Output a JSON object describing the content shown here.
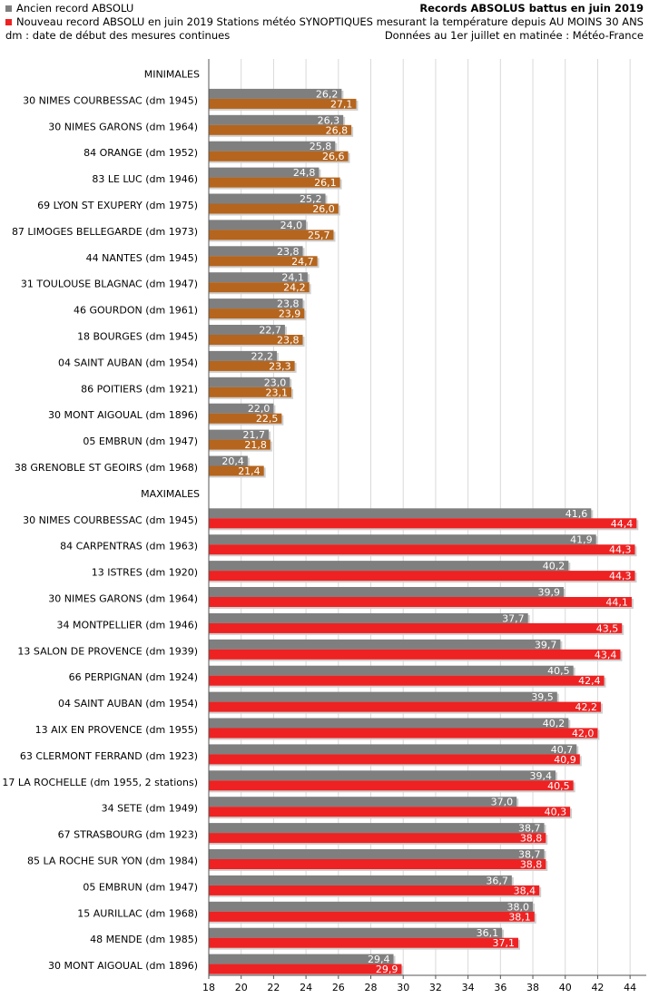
{
  "header": {
    "title": "Records ABSOLUS battus en juin 2019",
    "subtitle1": "Stations météo SYNOPTIQUES mesurant la température depuis AU MOINS 30 ANS",
    "subtitle2": "Données au 1er juillet en matinée : Météo-France"
  },
  "legend": {
    "old": "Ancien record ABSOLU",
    "new": "Nouveau record ABSOLU en juin 2019",
    "note": "dm : date de début des mesures continues"
  },
  "colors": {
    "old": "#7f7f7f",
    "new_min": "#b5651d",
    "new_max": "#ee2222",
    "grid": "#d9d9d9"
  },
  "chart_data": {
    "type": "bar",
    "orientation": "horizontal",
    "title": "Records ABSOLUS battus en juin 2019",
    "xlim": [
      18,
      45
    ],
    "xticks": [
      18,
      20,
      22,
      24,
      26,
      28,
      30,
      32,
      34,
      36,
      38,
      40,
      42,
      44
    ],
    "grid": true,
    "legend_position": "top-left",
    "groups": [
      {
        "name": "MINIMALES",
        "categories": [
          "30 NIMES COURBESSAC (dm 1945)",
          "30 NIMES GARONS (dm 1964)",
          "84 ORANGE (dm 1952)",
          "83 LE LUC (dm 1946)",
          "69 LYON ST EXUPERY (dm 1975)",
          "87 LIMOGES BELLEGARDE (dm 1973)",
          "44 NANTES (dm 1945)",
          "31 TOULOUSE BLAGNAC (dm 1947)",
          "46 GOURDON (dm 1961)",
          "18 BOURGES (dm 1945)",
          "04 SAINT AUBAN (dm 1954)",
          "86 POITIERS (dm 1921)",
          "30 MONT AIGOUAL (dm 1896)",
          "05 EMBRUN (dm 1947)",
          "38 GRENOBLE ST GEOIRS (dm 1968)"
        ],
        "series": [
          {
            "name": "Ancien record ABSOLU",
            "values": [
              26.2,
              26.3,
              25.8,
              24.8,
              25.2,
              24.0,
              23.8,
              24.1,
              23.8,
              22.7,
              22.2,
              23.0,
              22.0,
              21.7,
              20.4
            ]
          },
          {
            "name": "Nouveau record ABSOLU en juin 2019",
            "values": [
              27.1,
              26.8,
              26.6,
              26.1,
              26.0,
              25.7,
              24.7,
              24.2,
              23.9,
              23.8,
              23.3,
              23.1,
              22.5,
              21.8,
              21.4
            ]
          }
        ],
        "labels_old": [
          "26,2",
          "26,3",
          "25,8",
          "24,8",
          "25,2",
          "24,0",
          "23,8",
          "24,1",
          "23,8",
          "22,7",
          "22,2",
          "23,0",
          "22,0",
          "21,7",
          "20,4"
        ],
        "labels_new": [
          "27,1",
          "26,8",
          "26,6",
          "26,1",
          "26,0",
          "25,7",
          "24,7",
          "24,2",
          "23,9",
          "23,8",
          "23,3",
          "23,1",
          "22,5",
          "21,8",
          "21,4"
        ]
      },
      {
        "name": "MAXIMALES",
        "categories": [
          "30 NIMES COURBESSAC (dm 1945)",
          "84 CARPENTRAS (dm 1963)",
          "13 ISTRES (dm 1920)",
          "30 NIMES GARONS (dm 1964)",
          "34 MONTPELLIER (dm 1946)",
          "13 SALON DE PROVENCE (dm 1939)",
          "66 PERPIGNAN (dm 1924)",
          "04 SAINT AUBAN (dm 1954)",
          "13 AIX EN PROVENCE (dm 1955)",
          "63 CLERMONT FERRAND (dm 1923)",
          "17 LA ROCHELLE (dm 1955, 2 stations)",
          "34 SETE (dm 1949)",
          "67 STRASBOURG (dm 1923)",
          "85 LA ROCHE SUR YON (dm 1984)",
          "05 EMBRUN (dm 1947)",
          "15 AURILLAC (dm 1968)",
          "48 MENDE (dm 1985)",
          "30 MONT AIGOUAL (dm 1896)"
        ],
        "series": [
          {
            "name": "Ancien record ABSOLU",
            "values": [
              41.6,
              41.9,
              40.2,
              39.9,
              37.7,
              39.7,
              40.5,
              39.5,
              40.2,
              40.7,
              39.4,
              37.0,
              38.7,
              38.7,
              36.7,
              38.0,
              36.1,
              29.4
            ]
          },
          {
            "name": "Nouveau record ABSOLU en juin 2019",
            "values": [
              44.4,
              44.3,
              44.3,
              44.1,
              43.5,
              43.4,
              42.4,
              42.2,
              42.0,
              40.9,
              40.5,
              40.3,
              38.8,
              38.8,
              38.4,
              38.1,
              37.1,
              29.9
            ]
          }
        ],
        "labels_old": [
          "41,6",
          "41,9",
          "40,2",
          "39,9",
          "37,7",
          "39,7",
          "40,5",
          "39,5",
          "40,2",
          "40,7",
          "39,4",
          "37,0",
          "38,7",
          "38,7",
          "36,7",
          "38,0",
          "36,1",
          "29,4"
        ],
        "labels_new": [
          "44,4",
          "44,3",
          "44,3",
          "44,1",
          "43,5",
          "43,4",
          "42,4",
          "42,2",
          "42,0",
          "40,9",
          "40,5",
          "40,3",
          "38,8",
          "38,8",
          "38,4",
          "38,1",
          "37,1",
          "29,9"
        ]
      }
    ]
  }
}
